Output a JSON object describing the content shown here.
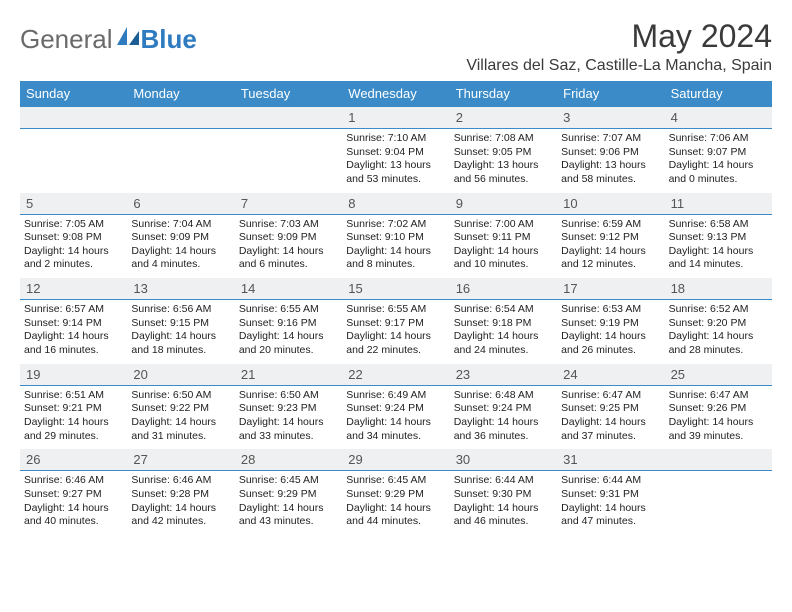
{
  "brand": {
    "name_a": "General",
    "name_b": "Blue"
  },
  "title": "May 2024",
  "location": "Villares del Saz, Castille-La Mancha, Spain",
  "colors": {
    "header_bg": "#3b8bc9",
    "header_text": "#ffffff",
    "daynum_bg": "#eef0f1",
    "divider": "#3b8bc9",
    "logo_gray": "#6a6a6a",
    "logo_blue": "#2f7bbf"
  },
  "day_names": [
    "Sunday",
    "Monday",
    "Tuesday",
    "Wednesday",
    "Thursday",
    "Friday",
    "Saturday"
  ],
  "weeks": [
    {
      "nums": [
        "",
        "",
        "",
        "1",
        "2",
        "3",
        "4"
      ],
      "cells": [
        null,
        null,
        null,
        {
          "sunrise": "Sunrise: 7:10 AM",
          "sunset": "Sunset: 9:04 PM",
          "daylight": "Daylight: 13 hours and 53 minutes."
        },
        {
          "sunrise": "Sunrise: 7:08 AM",
          "sunset": "Sunset: 9:05 PM",
          "daylight": "Daylight: 13 hours and 56 minutes."
        },
        {
          "sunrise": "Sunrise: 7:07 AM",
          "sunset": "Sunset: 9:06 PM",
          "daylight": "Daylight: 13 hours and 58 minutes."
        },
        {
          "sunrise": "Sunrise: 7:06 AM",
          "sunset": "Sunset: 9:07 PM",
          "daylight": "Daylight: 14 hours and 0 minutes."
        }
      ]
    },
    {
      "nums": [
        "5",
        "6",
        "7",
        "8",
        "9",
        "10",
        "11"
      ],
      "cells": [
        {
          "sunrise": "Sunrise: 7:05 AM",
          "sunset": "Sunset: 9:08 PM",
          "daylight": "Daylight: 14 hours and 2 minutes."
        },
        {
          "sunrise": "Sunrise: 7:04 AM",
          "sunset": "Sunset: 9:09 PM",
          "daylight": "Daylight: 14 hours and 4 minutes."
        },
        {
          "sunrise": "Sunrise: 7:03 AM",
          "sunset": "Sunset: 9:09 PM",
          "daylight": "Daylight: 14 hours and 6 minutes."
        },
        {
          "sunrise": "Sunrise: 7:02 AM",
          "sunset": "Sunset: 9:10 PM",
          "daylight": "Daylight: 14 hours and 8 minutes."
        },
        {
          "sunrise": "Sunrise: 7:00 AM",
          "sunset": "Sunset: 9:11 PM",
          "daylight": "Daylight: 14 hours and 10 minutes."
        },
        {
          "sunrise": "Sunrise: 6:59 AM",
          "sunset": "Sunset: 9:12 PM",
          "daylight": "Daylight: 14 hours and 12 minutes."
        },
        {
          "sunrise": "Sunrise: 6:58 AM",
          "sunset": "Sunset: 9:13 PM",
          "daylight": "Daylight: 14 hours and 14 minutes."
        }
      ]
    },
    {
      "nums": [
        "12",
        "13",
        "14",
        "15",
        "16",
        "17",
        "18"
      ],
      "cells": [
        {
          "sunrise": "Sunrise: 6:57 AM",
          "sunset": "Sunset: 9:14 PM",
          "daylight": "Daylight: 14 hours and 16 minutes."
        },
        {
          "sunrise": "Sunrise: 6:56 AM",
          "sunset": "Sunset: 9:15 PM",
          "daylight": "Daylight: 14 hours and 18 minutes."
        },
        {
          "sunrise": "Sunrise: 6:55 AM",
          "sunset": "Sunset: 9:16 PM",
          "daylight": "Daylight: 14 hours and 20 minutes."
        },
        {
          "sunrise": "Sunrise: 6:55 AM",
          "sunset": "Sunset: 9:17 PM",
          "daylight": "Daylight: 14 hours and 22 minutes."
        },
        {
          "sunrise": "Sunrise: 6:54 AM",
          "sunset": "Sunset: 9:18 PM",
          "daylight": "Daylight: 14 hours and 24 minutes."
        },
        {
          "sunrise": "Sunrise: 6:53 AM",
          "sunset": "Sunset: 9:19 PM",
          "daylight": "Daylight: 14 hours and 26 minutes."
        },
        {
          "sunrise": "Sunrise: 6:52 AM",
          "sunset": "Sunset: 9:20 PM",
          "daylight": "Daylight: 14 hours and 28 minutes."
        }
      ]
    },
    {
      "nums": [
        "19",
        "20",
        "21",
        "22",
        "23",
        "24",
        "25"
      ],
      "cells": [
        {
          "sunrise": "Sunrise: 6:51 AM",
          "sunset": "Sunset: 9:21 PM",
          "daylight": "Daylight: 14 hours and 29 minutes."
        },
        {
          "sunrise": "Sunrise: 6:50 AM",
          "sunset": "Sunset: 9:22 PM",
          "daylight": "Daylight: 14 hours and 31 minutes."
        },
        {
          "sunrise": "Sunrise: 6:50 AM",
          "sunset": "Sunset: 9:23 PM",
          "daylight": "Daylight: 14 hours and 33 minutes."
        },
        {
          "sunrise": "Sunrise: 6:49 AM",
          "sunset": "Sunset: 9:24 PM",
          "daylight": "Daylight: 14 hours and 34 minutes."
        },
        {
          "sunrise": "Sunrise: 6:48 AM",
          "sunset": "Sunset: 9:24 PM",
          "daylight": "Daylight: 14 hours and 36 minutes."
        },
        {
          "sunrise": "Sunrise: 6:47 AM",
          "sunset": "Sunset: 9:25 PM",
          "daylight": "Daylight: 14 hours and 37 minutes."
        },
        {
          "sunrise": "Sunrise: 6:47 AM",
          "sunset": "Sunset: 9:26 PM",
          "daylight": "Daylight: 14 hours and 39 minutes."
        }
      ]
    },
    {
      "nums": [
        "26",
        "27",
        "28",
        "29",
        "30",
        "31",
        ""
      ],
      "cells": [
        {
          "sunrise": "Sunrise: 6:46 AM",
          "sunset": "Sunset: 9:27 PM",
          "daylight": "Daylight: 14 hours and 40 minutes."
        },
        {
          "sunrise": "Sunrise: 6:46 AM",
          "sunset": "Sunset: 9:28 PM",
          "daylight": "Daylight: 14 hours and 42 minutes."
        },
        {
          "sunrise": "Sunrise: 6:45 AM",
          "sunset": "Sunset: 9:29 PM",
          "daylight": "Daylight: 14 hours and 43 minutes."
        },
        {
          "sunrise": "Sunrise: 6:45 AM",
          "sunset": "Sunset: 9:29 PM",
          "daylight": "Daylight: 14 hours and 44 minutes."
        },
        {
          "sunrise": "Sunrise: 6:44 AM",
          "sunset": "Sunset: 9:30 PM",
          "daylight": "Daylight: 14 hours and 46 minutes."
        },
        {
          "sunrise": "Sunrise: 6:44 AM",
          "sunset": "Sunset: 9:31 PM",
          "daylight": "Daylight: 14 hours and 47 minutes."
        },
        null
      ]
    }
  ]
}
